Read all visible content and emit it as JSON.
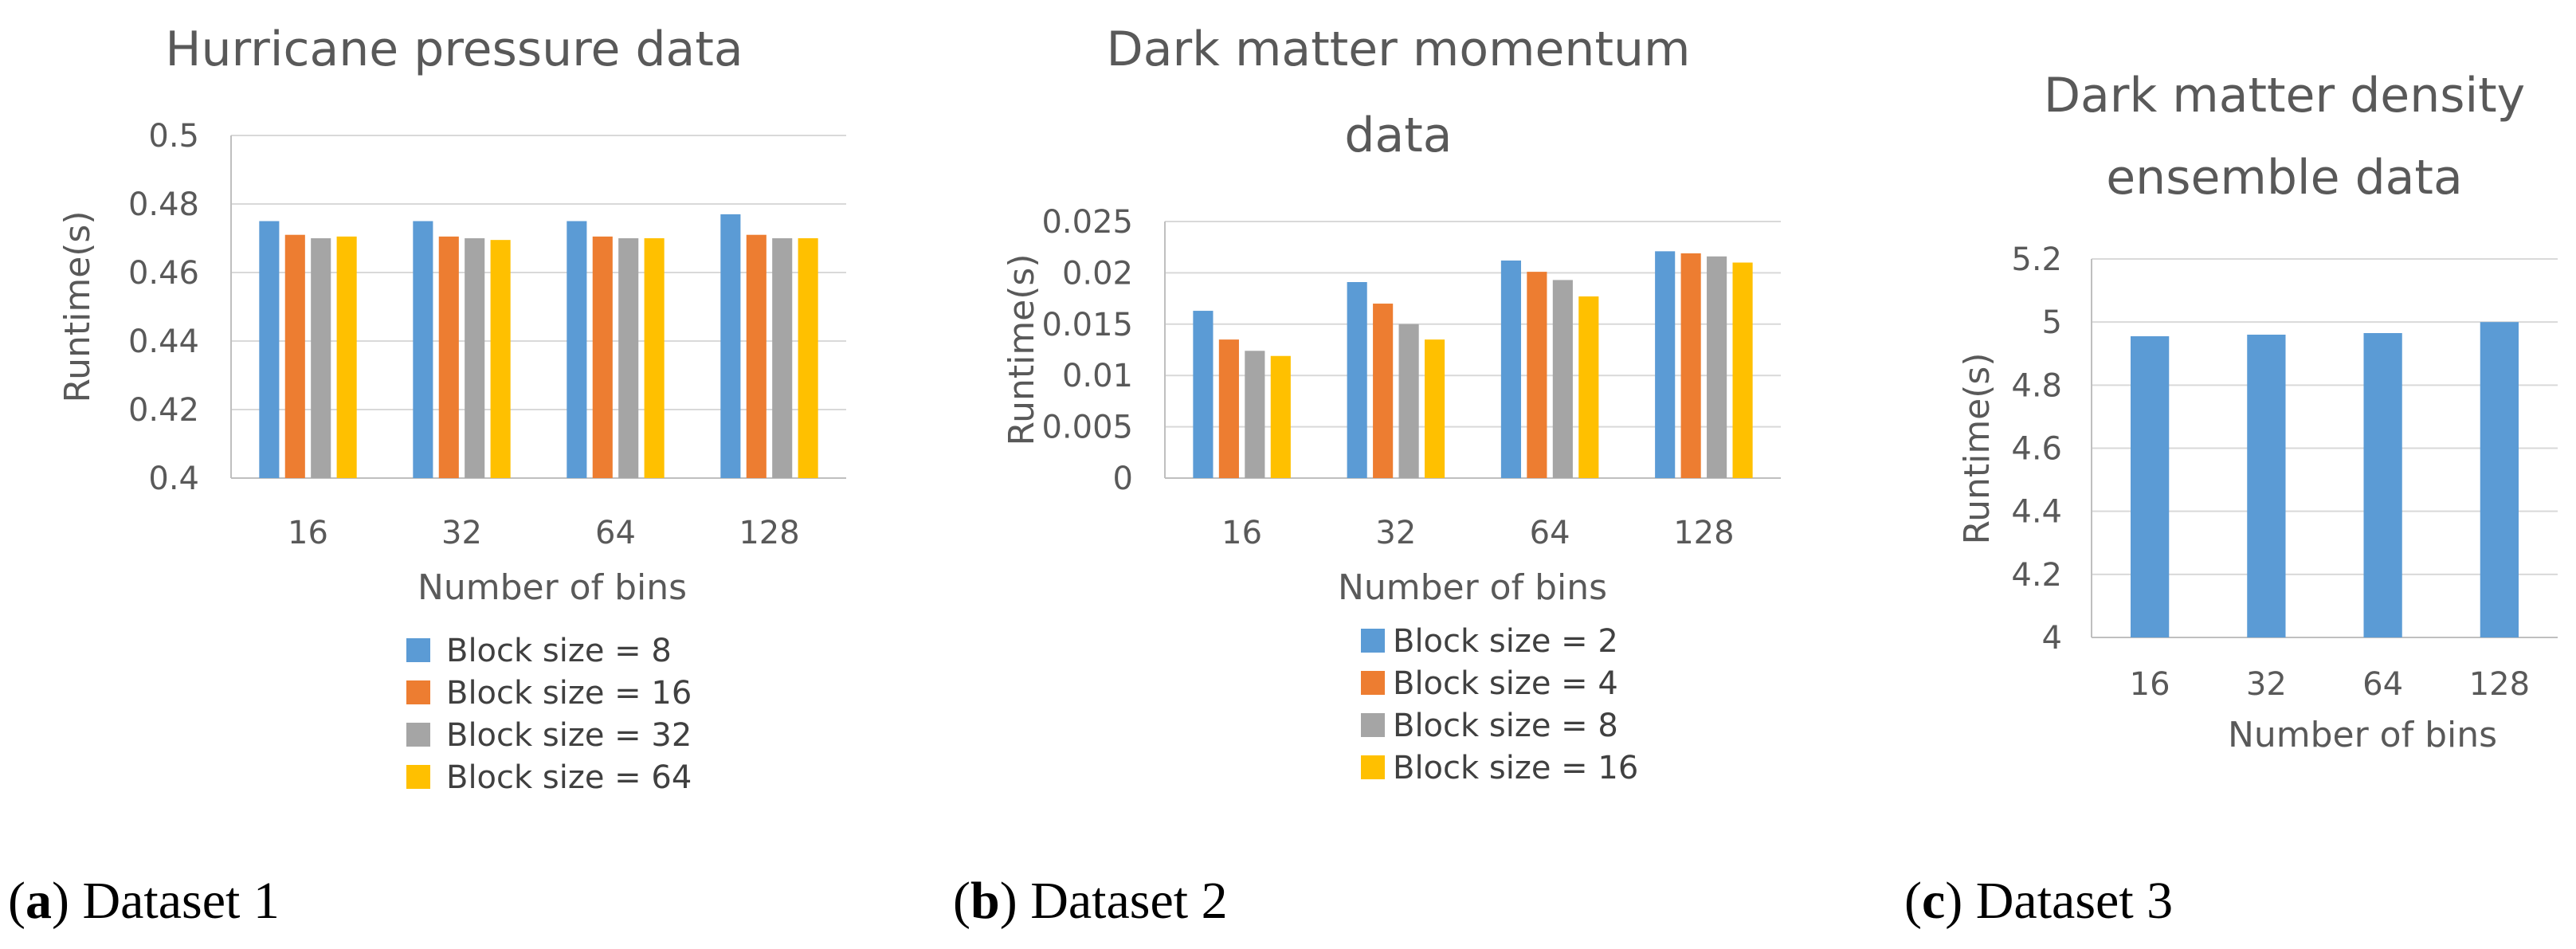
{
  "chart_data": [
    {
      "type": "bar",
      "title": [
        "Hurricane pressure data"
      ],
      "caption_letter": "a",
      "caption_text": "Dataset 1",
      "xlabel": "Number of bins",
      "ylabel": "Runtime(s)",
      "ylim": [
        0.4,
        0.5
      ],
      "yticks": [
        "0.4",
        "0.42",
        "0.44",
        "0.46",
        "0.48",
        "0.5"
      ],
      "categories": [
        "16",
        "32",
        "64",
        "128"
      ],
      "series": [
        {
          "name": "Block size = 8",
          "values": [
            0.475,
            0.475,
            0.475,
            0.477
          ]
        },
        {
          "name": "Block size = 16",
          "values": [
            0.471,
            0.4705,
            0.4705,
            0.471
          ]
        },
        {
          "name": "Block size = 32",
          "values": [
            0.47,
            0.47,
            0.47,
            0.47
          ]
        },
        {
          "name": "Block size = 64",
          "values": [
            0.4705,
            0.4695,
            0.47,
            0.47
          ]
        }
      ]
    },
    {
      "type": "bar",
      "title": [
        "Dark matter momentum",
        "data"
      ],
      "caption_letter": "b",
      "caption_text": "Dataset 2",
      "xlabel": "Number of bins",
      "ylabel": "Runtime(s)",
      "ylim": [
        0,
        0.025
      ],
      "yticks": [
        "0",
        "0.005",
        "0.01",
        "0.015",
        "0.02",
        "0.025"
      ],
      "categories": [
        "16",
        "32",
        "64",
        "128"
      ],
      "series": [
        {
          "name": "Block size = 2",
          "values": [
            0.0163,
            0.0191,
            0.0212,
            0.0221
          ]
        },
        {
          "name": "Block size = 4",
          "values": [
            0.0135,
            0.017,
            0.0201,
            0.0219
          ]
        },
        {
          "name": "Block size = 8",
          "values": [
            0.0124,
            0.015,
            0.0193,
            0.0216
          ]
        },
        {
          "name": "Block size = 16",
          "values": [
            0.0119,
            0.0135,
            0.0177,
            0.021
          ]
        }
      ]
    },
    {
      "type": "bar",
      "title": [
        "Dark matter density",
        "ensemble data"
      ],
      "caption_letter": "c",
      "caption_text": "Dataset 3",
      "xlabel": "Number of bins",
      "ylabel": "Runtime(s)",
      "ylim": [
        4,
        5.2
      ],
      "yticks": [
        "4",
        "4.2",
        "4.4",
        "4.6",
        "4.8",
        "5",
        "5.2"
      ],
      "categories": [
        "16",
        "32",
        "64",
        "128"
      ],
      "series": [
        {
          "name": "Runtime",
          "values": [
            4.955,
            4.96,
            4.965,
            5.0
          ]
        }
      ]
    }
  ],
  "colors": [
    "#5B9BD5",
    "#ED7D31",
    "#A5A5A5",
    "#FFC000"
  ],
  "grid_color": "#D9D9D9",
  "axis_color": "#BFBFBF"
}
